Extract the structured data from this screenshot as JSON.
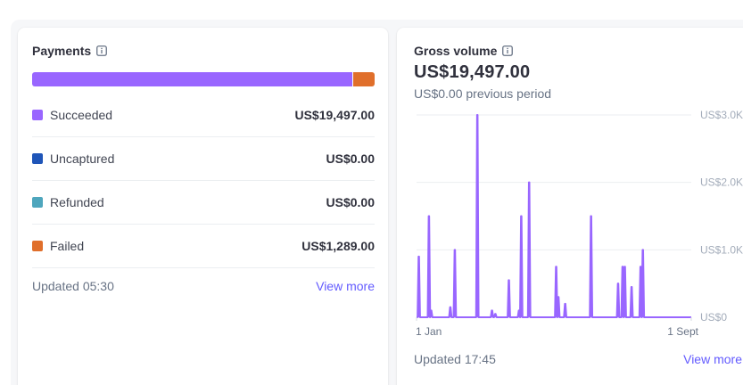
{
  "payments": {
    "title": "Payments",
    "info_icon": "info-icon",
    "segments": [
      {
        "name": "Succeeded",
        "amount": 19497.0,
        "color": "#9966ff"
      },
      {
        "name": "Uncaptured",
        "amount": 0,
        "color": "#1f55b8"
      },
      {
        "name": "Refunded",
        "amount": 0,
        "color": "#4ea6bd"
      },
      {
        "name": "Failed",
        "amount": 1289.0,
        "color": "#e06f2b"
      }
    ],
    "rows": [
      {
        "label": "Succeeded",
        "value": "US$19,497.00",
        "color": "#9966ff"
      },
      {
        "label": "Uncaptured",
        "value": "US$0.00",
        "color": "#1f55b8"
      },
      {
        "label": "Refunded",
        "value": "US$0.00",
        "color": "#4ea6bd"
      },
      {
        "label": "Failed",
        "value": "US$1,289.00",
        "color": "#e06f2b"
      }
    ],
    "updated": "Updated 05:30",
    "view_more": "View more"
  },
  "gross": {
    "title": "Gross volume",
    "info_icon": "info-icon",
    "value": "US$19,497.00",
    "previous": "US$0.00 previous period",
    "updated": "Updated 17:45",
    "view_more": "View more"
  },
  "chart_data": {
    "type": "area",
    "title": "Gross volume",
    "series": [
      {
        "name": "Gross volume",
        "color": "#9966ff"
      }
    ],
    "x_range_labels": [
      "1 Jan",
      "1 Sept"
    ],
    "yticks": [
      0,
      1000,
      2000,
      3000
    ],
    "ytick_labels": [
      "US$0",
      "US$1.0K",
      "US$2.0K",
      "US$3.0K"
    ],
    "ylim": [
      0,
      3000
    ],
    "grid": true,
    "days": 244,
    "spikes": [
      {
        "day": 2,
        "value": 900
      },
      {
        "day": 11,
        "value": 1500
      },
      {
        "day": 13,
        "value": 100
      },
      {
        "day": 30,
        "value": 150
      },
      {
        "day": 34,
        "value": 1000
      },
      {
        "day": 54,
        "value": 3000
      },
      {
        "day": 67,
        "value": 100
      },
      {
        "day": 70,
        "value": 50
      },
      {
        "day": 82,
        "value": 550
      },
      {
        "day": 91,
        "value": 100
      },
      {
        "day": 93,
        "value": 1500
      },
      {
        "day": 100,
        "value": 2000
      },
      {
        "day": 124,
        "value": 750
      },
      {
        "day": 126,
        "value": 300
      },
      {
        "day": 132,
        "value": 200
      },
      {
        "day": 155,
        "value": 1500
      },
      {
        "day": 179,
        "value": 500
      },
      {
        "day": 183,
        "value": 750
      },
      {
        "day": 185,
        "value": 750
      },
      {
        "day": 191,
        "value": 450
      },
      {
        "day": 199,
        "value": 750
      },
      {
        "day": 201,
        "value": 1000
      }
    ]
  }
}
